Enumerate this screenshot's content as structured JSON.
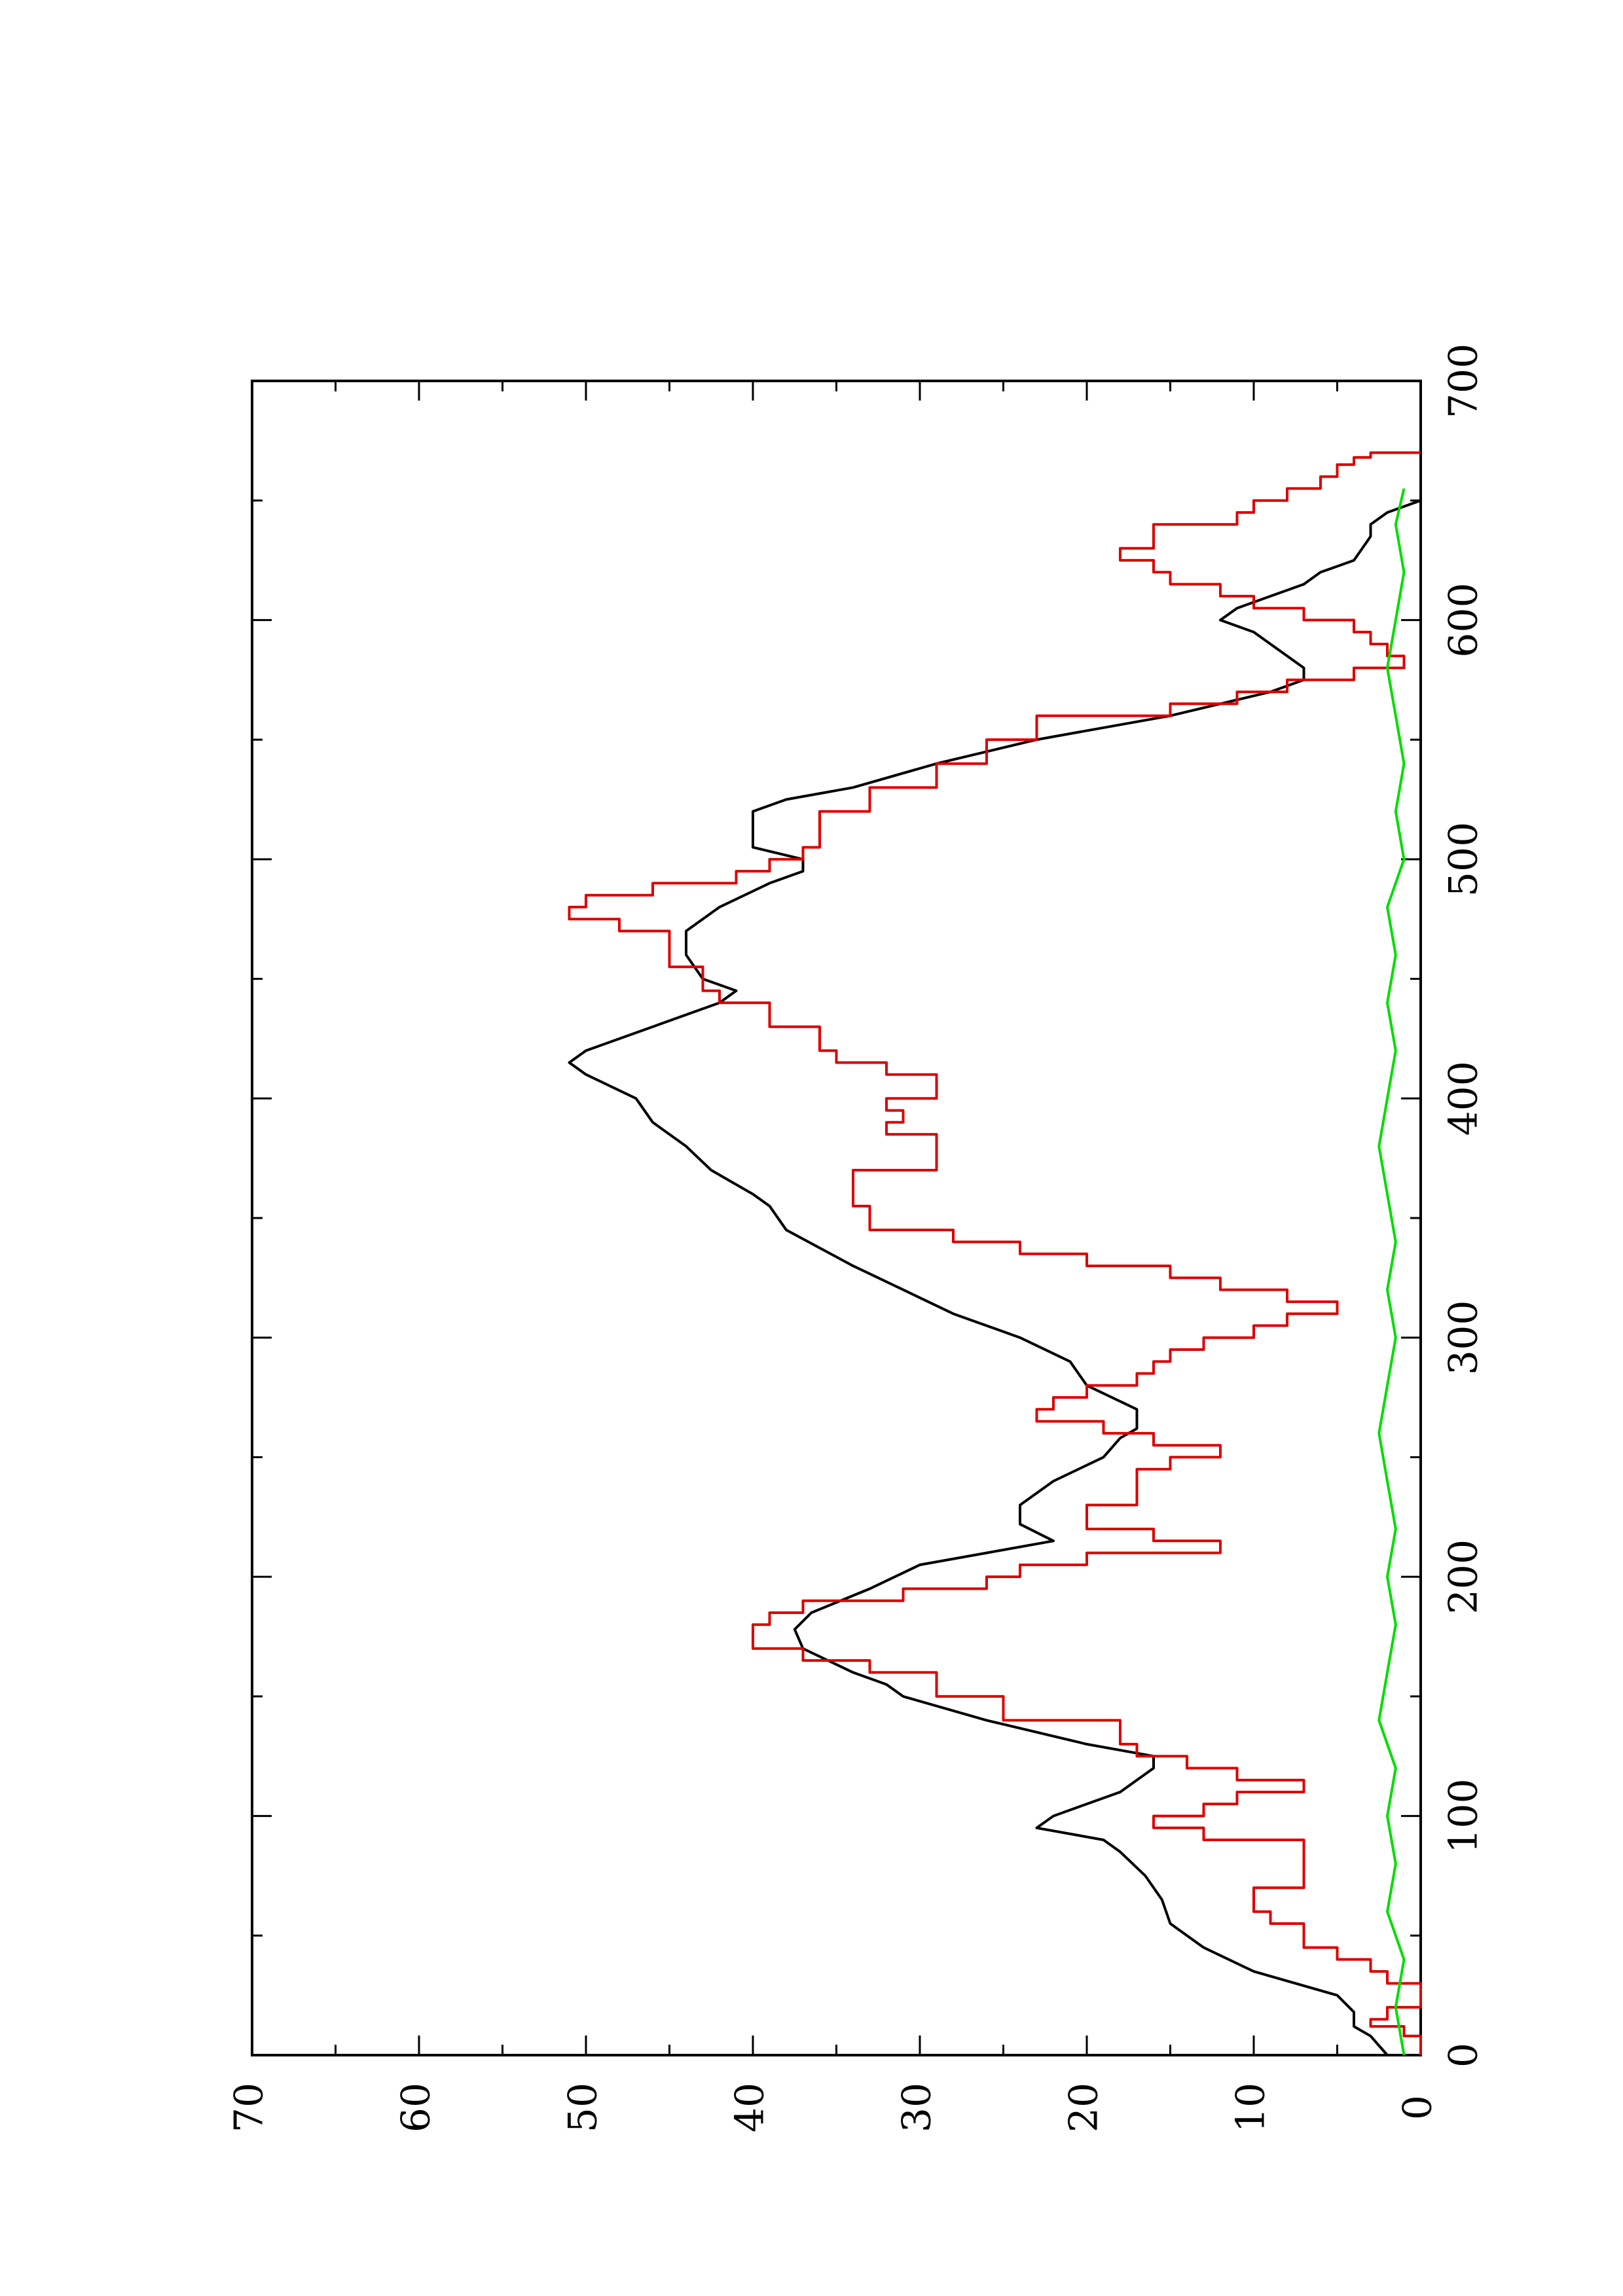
{
  "chart_data": {
    "type": "line",
    "orientation": "rotated-90-clockwise",
    "title": "",
    "xlabel": "",
    "ylabel": "",
    "xlim": [
      0,
      700
    ],
    "ylim": [
      0,
      70
    ],
    "x_major_ticks": [
      0,
      100,
      200,
      300,
      400,
      500,
      600,
      700
    ],
    "x_minor_ticks": [
      50,
      150,
      250,
      350,
      450,
      550,
      650
    ],
    "y_major_ticks": [
      0,
      10,
      20,
      30,
      40,
      50,
      60,
      70
    ],
    "y_minor_ticks": [
      5,
      15,
      25,
      35,
      45,
      55,
      65
    ],
    "x_tick_labels": [
      "0",
      "100",
      "200",
      "300",
      "400",
      "500",
      "600",
      "700"
    ],
    "y_tick_labels": [
      "0",
      "10",
      "20",
      "30",
      "40",
      "50",
      "60",
      "70"
    ],
    "grid": false,
    "legend": "none",
    "series": [
      {
        "color": "#000000",
        "style": "smooth",
        "points": [
          [
            0,
            2
          ],
          [
            8,
            3
          ],
          [
            12,
            4
          ],
          [
            18,
            4
          ],
          [
            25,
            5
          ],
          [
            35,
            10
          ],
          [
            45,
            13
          ],
          [
            55,
            15
          ],
          [
            65,
            15.5
          ],
          [
            75,
            16.5
          ],
          [
            85,
            18
          ],
          [
            90,
            19
          ],
          [
            95,
            23
          ],
          [
            100,
            22
          ],
          [
            105,
            20
          ],
          [
            110,
            18
          ],
          [
            120,
            16
          ],
          [
            125,
            16
          ],
          [
            130,
            20
          ],
          [
            140,
            26
          ],
          [
            150,
            31
          ],
          [
            155,
            32
          ],
          [
            160,
            34
          ],
          [
            170,
            37
          ],
          [
            178,
            37.5
          ],
          [
            185,
            36.5
          ],
          [
            195,
            33
          ],
          [
            205,
            30
          ],
          [
            210,
            26
          ],
          [
            215,
            22
          ],
          [
            222,
            24
          ],
          [
            230,
            24
          ],
          [
            240,
            22
          ],
          [
            250,
            19
          ],
          [
            258,
            18
          ],
          [
            262,
            17
          ],
          [
            270,
            17
          ],
          [
            280,
            20
          ],
          [
            290,
            21
          ],
          [
            300,
            24
          ],
          [
            310,
            28
          ],
          [
            320,
            31
          ],
          [
            330,
            34
          ],
          [
            345,
            38
          ],
          [
            355,
            39
          ],
          [
            360,
            40
          ],
          [
            370,
            42.5
          ],
          [
            380,
            44
          ],
          [
            390,
            46
          ],
          [
            400,
            47
          ],
          [
            410,
            50
          ],
          [
            415,
            51
          ],
          [
            420,
            50
          ],
          [
            430,
            46
          ],
          [
            440,
            42
          ],
          [
            445,
            41
          ],
          [
            450,
            43
          ],
          [
            455,
            43.5
          ],
          [
            460,
            44
          ],
          [
            470,
            44
          ],
          [
            480,
            42
          ],
          [
            490,
            39
          ],
          [
            495,
            37
          ],
          [
            500,
            37
          ],
          [
            505,
            40
          ],
          [
            510,
            40
          ],
          [
            515,
            40
          ],
          [
            520,
            40
          ],
          [
            525,
            38
          ],
          [
            530,
            34
          ],
          [
            540,
            29
          ],
          [
            550,
            23
          ],
          [
            560,
            15
          ],
          [
            565,
            12
          ],
          [
            570,
            9
          ],
          [
            575,
            7
          ],
          [
            580,
            7
          ],
          [
            585,
            8
          ],
          [
            590,
            9
          ],
          [
            595,
            10
          ],
          [
            600,
            12
          ],
          [
            605,
            11
          ],
          [
            610,
            9
          ],
          [
            615,
            7
          ],
          [
            620,
            6
          ],
          [
            625,
            4
          ],
          [
            635,
            3
          ],
          [
            640,
            3
          ],
          [
            645,
            2
          ],
          [
            650,
            0
          ]
        ]
      },
      {
        "color": "#dd0000",
        "style": "step",
        "points": [
          [
            0,
            0
          ],
          [
            5,
            0
          ],
          [
            8,
            1
          ],
          [
            12,
            3
          ],
          [
            15,
            2
          ],
          [
            18,
            2
          ],
          [
            20,
            0
          ],
          [
            25,
            0
          ],
          [
            30,
            2
          ],
          [
            35,
            3
          ],
          [
            40,
            5
          ],
          [
            45,
            7
          ],
          [
            50,
            7
          ],
          [
            55,
            9
          ],
          [
            60,
            10
          ],
          [
            65,
            10
          ],
          [
            70,
            7
          ],
          [
            80,
            7
          ],
          [
            85,
            7
          ],
          [
            90,
            13
          ],
          [
            95,
            16
          ],
          [
            100,
            13
          ],
          [
            105,
            11
          ],
          [
            110,
            7
          ],
          [
            115,
            11
          ],
          [
            120,
            14
          ],
          [
            125,
            17
          ],
          [
            130,
            18
          ],
          [
            140,
            25
          ],
          [
            150,
            29
          ],
          [
            160,
            33
          ],
          [
            165,
            37
          ],
          [
            170,
            40
          ],
          [
            175,
            40
          ],
          [
            180,
            39
          ],
          [
            185,
            37
          ],
          [
            190,
            31
          ],
          [
            195,
            26
          ],
          [
            200,
            24
          ],
          [
            205,
            20
          ],
          [
            210,
            12
          ],
          [
            215,
            16
          ],
          [
            220,
            20
          ],
          [
            225,
            20
          ],
          [
            230,
            17
          ],
          [
            240,
            17
          ],
          [
            245,
            15
          ],
          [
            250,
            12
          ],
          [
            255,
            16
          ],
          [
            260,
            19
          ],
          [
            265,
            23
          ],
          [
            270,
            22
          ],
          [
            275,
            20
          ],
          [
            280,
            17
          ],
          [
            285,
            16
          ],
          [
            290,
            15
          ],
          [
            295,
            13
          ],
          [
            300,
            10
          ],
          [
            305,
            8
          ],
          [
            310,
            5
          ],
          [
            315,
            8
          ],
          [
            320,
            12
          ],
          [
            325,
            15
          ],
          [
            330,
            20
          ],
          [
            335,
            24
          ],
          [
            340,
            28
          ],
          [
            345,
            33
          ],
          [
            350,
            33
          ],
          [
            355,
            34
          ],
          [
            360,
            34
          ],
          [
            365,
            34
          ],
          [
            370,
            29
          ],
          [
            375,
            29
          ],
          [
            380,
            29
          ],
          [
            385,
            32
          ],
          [
            390,
            31
          ],
          [
            395,
            32
          ],
          [
            400,
            29
          ],
          [
            405,
            29
          ],
          [
            410,
            32
          ],
          [
            415,
            35
          ],
          [
            420,
            36
          ],
          [
            430,
            39
          ],
          [
            440,
            42
          ],
          [
            445,
            43
          ],
          [
            450,
            43
          ],
          [
            455,
            45
          ],
          [
            460,
            45
          ],
          [
            470,
            48
          ],
          [
            475,
            51
          ],
          [
            480,
            50
          ],
          [
            485,
            46
          ],
          [
            490,
            41
          ],
          [
            495,
            39
          ],
          [
            500,
            37
          ],
          [
            505,
            36
          ],
          [
            510,
            36
          ],
          [
            520,
            33
          ],
          [
            530,
            29
          ],
          [
            540,
            26
          ],
          [
            550,
            23
          ],
          [
            560,
            15
          ],
          [
            565,
            11
          ],
          [
            570,
            8
          ],
          [
            575,
            4
          ],
          [
            580,
            1
          ],
          [
            585,
            2
          ],
          [
            590,
            3
          ],
          [
            595,
            4
          ],
          [
            600,
            7
          ],
          [
            605,
            10
          ],
          [
            610,
            12
          ],
          [
            615,
            15
          ],
          [
            620,
            16
          ],
          [
            625,
            18
          ],
          [
            630,
            16
          ],
          [
            640,
            11
          ],
          [
            645,
            10
          ],
          [
            650,
            8
          ],
          [
            655,
            6
          ],
          [
            660,
            5
          ],
          [
            665,
            4
          ],
          [
            668,
            3
          ],
          [
            670,
            0
          ]
        ]
      },
      {
        "color": "#00dd00",
        "style": "noisy",
        "points": [
          [
            0,
            1
          ],
          [
            20,
            1.5
          ],
          [
            40,
            1
          ],
          [
            60,
            2
          ],
          [
            80,
            1.5
          ],
          [
            100,
            2
          ],
          [
            120,
            1.5
          ],
          [
            140,
            2.5
          ],
          [
            160,
            2
          ],
          [
            180,
            1.5
          ],
          [
            200,
            2
          ],
          [
            220,
            1.5
          ],
          [
            240,
            2
          ],
          [
            260,
            2.5
          ],
          [
            280,
            2
          ],
          [
            300,
            1.5
          ],
          [
            320,
            2
          ],
          [
            340,
            1.5
          ],
          [
            360,
            2
          ],
          [
            380,
            2.5
          ],
          [
            400,
            2
          ],
          [
            420,
            1.5
          ],
          [
            440,
            2
          ],
          [
            460,
            1.5
          ],
          [
            480,
            2
          ],
          [
            500,
            1
          ],
          [
            520,
            1.5
          ],
          [
            540,
            1
          ],
          [
            560,
            1.5
          ],
          [
            580,
            2
          ],
          [
            600,
            1.5
          ],
          [
            620,
            1
          ],
          [
            640,
            1.5
          ],
          [
            655,
            1
          ]
        ]
      }
    ]
  }
}
